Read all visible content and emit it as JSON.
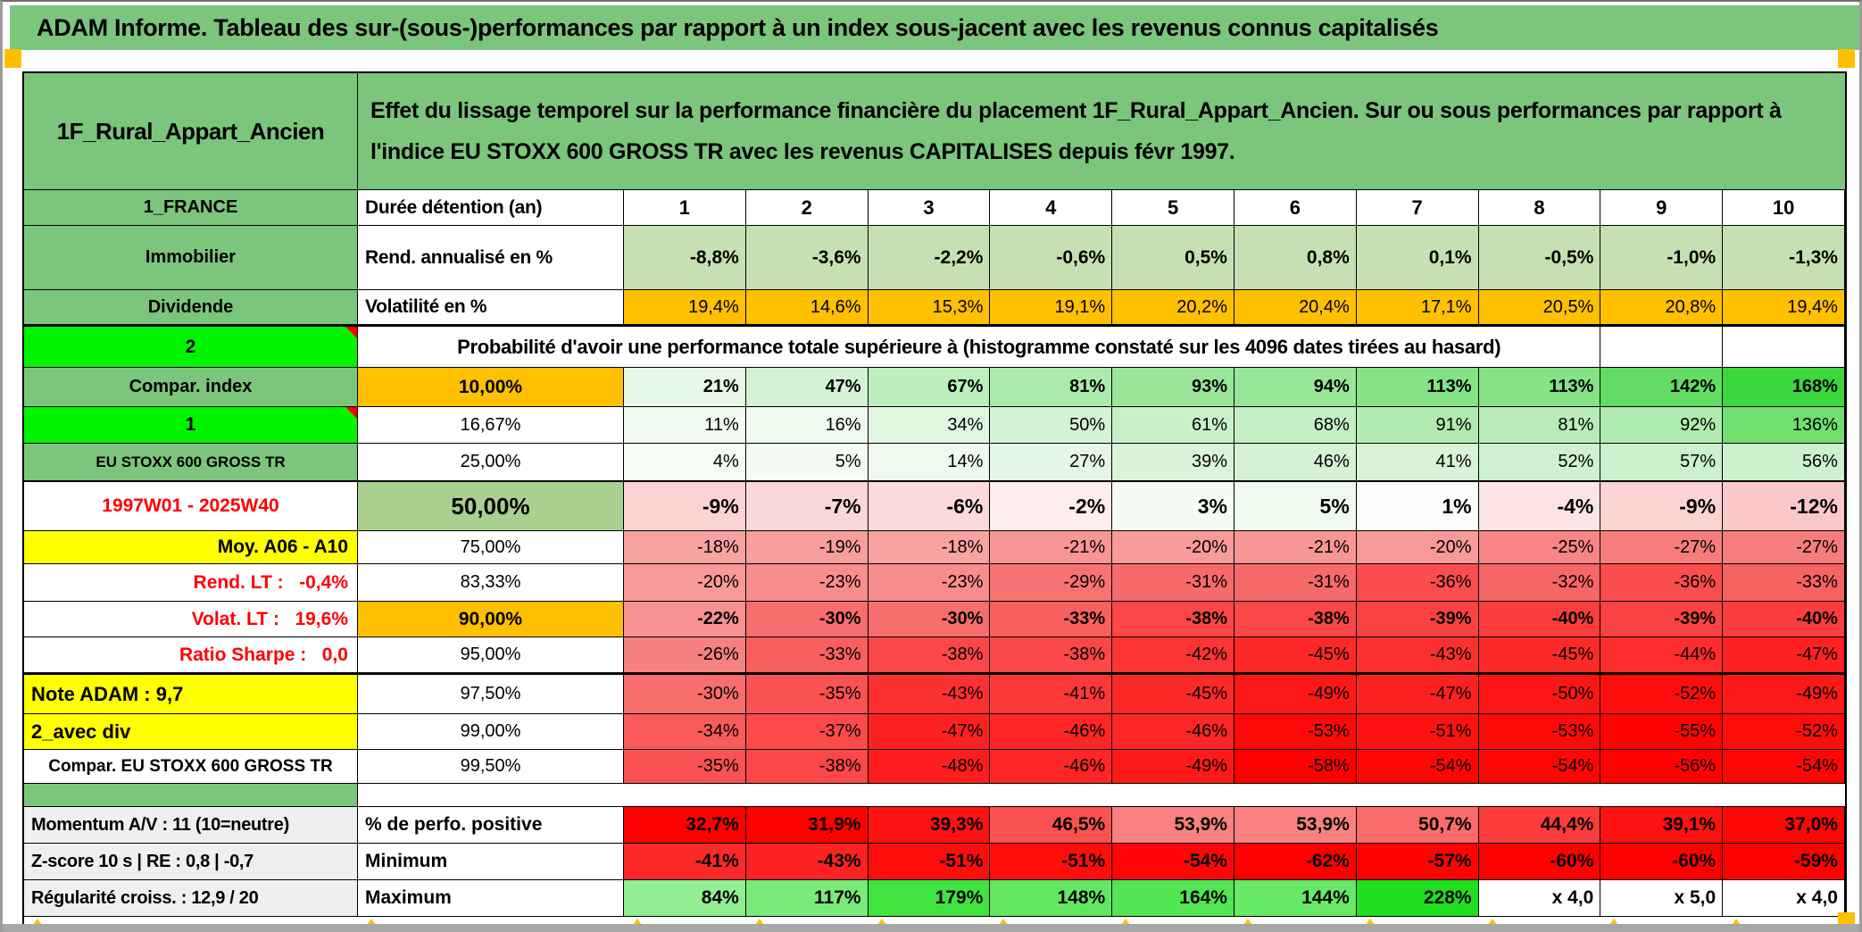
{
  "title": "ADAM Informe. Tableau des sur-(sous-)performances par rapport à un index sous-jacent avec les revenus connus capitalisés",
  "header": {
    "name": "1F_Rural_Appart_Ancien",
    "description": "Effet du lissage temporel sur la performance financière du placement 1F_Rural_Appart_Ancien. Sur ou sous performances par rapport à l'indice EU STOXX 600 GROSS TR avec les revenus CAPITALISES depuis févr 1997."
  },
  "colors": {
    "header_green": "#7cc57d",
    "bright_green": "#00f400",
    "orange": "#ffc000",
    "yellow": "#ffff00",
    "light_green_row": "#c6e0b4",
    "mid_green": "#a9d08e",
    "gray_label": "#efefef",
    "red_text": "#ff0000"
  },
  "main_rows": [
    {
      "a": "1_FRANCE",
      "aStyle": "green",
      "b": "Durée détention (an)",
      "bStyle": "hdr",
      "bold": true,
      "cells": [
        "1",
        "2",
        "3",
        "4",
        "5",
        "6",
        "7",
        "8",
        "9",
        "10"
      ],
      "bg": [
        "#ffffff",
        "#ffffff",
        "#ffffff",
        "#ffffff",
        "#ffffff",
        "#ffffff",
        "#ffffff",
        "#ffffff",
        "#ffffff",
        "#ffffff"
      ]
    },
    {
      "a": "Immobilier",
      "aStyle": "green",
      "b": "Rend. annualisé en %",
      "bStyle": "hdr",
      "bold": true,
      "cells": [
        "-8,8%",
        "-3,6%",
        "-2,2%",
        "-0,6%",
        "0,5%",
        "0,8%",
        "0,1%",
        "-0,5%",
        "-1,0%",
        "-1,3%"
      ],
      "bg": [
        "#c6e0b4",
        "#c6e0b4",
        "#c6e0b4",
        "#c6e0b4",
        "#c6e0b4",
        "#c6e0b4",
        "#c6e0b4",
        "#c6e0b4",
        "#c6e0b4",
        "#c6e0b4"
      ]
    },
    {
      "a": "Dividende",
      "aStyle": "green",
      "b": "Volatilité en %",
      "bStyle": "hdr",
      "bold": false,
      "cells": [
        "19,4%",
        "14,6%",
        "15,3%",
        "19,1%",
        "20,2%",
        "20,4%",
        "17,1%",
        "20,5%",
        "20,8%",
        "19,4%"
      ],
      "bg": [
        "#ffc000",
        "#ffc000",
        "#ffc000",
        "#ffc000",
        "#ffc000",
        "#ffc000",
        "#ffc000",
        "#ffc000",
        "#ffc000",
        "#ffc000"
      ]
    },
    {
      "a": "2",
      "aStyle": "bright",
      "note": true,
      "b": "Probabilité d'avoir une performance totale supérieure à (histogramme constaté sur les 4096 dates tirées au hasard)",
      "bStyle": "merged",
      "merged": true,
      "bold": false,
      "cells": [
        "",
        ""
      ],
      "bg": [
        "#ffffff",
        "#ffffff"
      ]
    },
    {
      "a": "Compar. index",
      "aStyle": "green",
      "b": "10,00%",
      "bStyle": "orange",
      "bold": true,
      "cells": [
        "21%",
        "47%",
        "67%",
        "81%",
        "93%",
        "94%",
        "113%",
        "113%",
        "142%",
        "168%"
      ],
      "bg": [
        "#e7f8e7",
        "#d4f3d4",
        "#bdeebd",
        "#abeaab",
        "#99e699",
        "#98e698",
        "#85e285",
        "#85e285",
        "#62dc62",
        "#3cd73c"
      ]
    },
    {
      "a": "1",
      "aStyle": "bright",
      "note": true,
      "b": "16,67%",
      "bStyle": "pct",
      "bold": false,
      "cells": [
        "11%",
        "16%",
        "34%",
        "50%",
        "61%",
        "68%",
        "91%",
        "81%",
        "92%",
        "136%"
      ],
      "bg": [
        "#f1fbf1",
        "#eefaee",
        "#e1f6e1",
        "#d4f2d4",
        "#caf0ca",
        "#c4eec4",
        "#b0eab0",
        "#b9ecb9",
        "#afeaaf",
        "#70df70"
      ]
    },
    {
      "a": "EU STOXX 600 GROSS TR",
      "aStyle": "green-sm",
      "b": "25,00%",
      "bStyle": "pct",
      "bold": false,
      "cells": [
        "4%",
        "5%",
        "14%",
        "27%",
        "39%",
        "46%",
        "41%",
        "52%",
        "57%",
        "56%"
      ],
      "bg": [
        "#f6fcf6",
        "#f5fcf5",
        "#eefaee",
        "#e4f7e4",
        "#daf4da",
        "#d5f2d5",
        "#d8f3d8",
        "#d0f1d0",
        "#ccf0cc",
        "#cdf0cd"
      ]
    },
    {
      "a": "1997W01 - 2025W40",
      "aStyle": "red-center",
      "b": "50,00%",
      "bStyle": "pct-green",
      "bold": true,
      "cells": [
        "-9%",
        "-7%",
        "-6%",
        "-2%",
        "3%",
        "5%",
        "1%",
        "-4%",
        "-9%",
        "-12%"
      ],
      "bg": [
        "#fbd3d3",
        "#fbd8d8",
        "#fcdbdb",
        "#feeded",
        "#f4fcf4",
        "#effaef",
        "#fbfefb",
        "#fde4e4",
        "#fbd3d3",
        "#fac8c8"
      ]
    },
    {
      "a": "Moy. A06 - A10",
      "aStyle": "yellow-right",
      "b": "75,00%",
      "bStyle": "pct",
      "bold": false,
      "cells": [
        "-18%",
        "-19%",
        "-18%",
        "-21%",
        "-20%",
        "-21%",
        "-20%",
        "-25%",
        "-27%",
        "-27%"
      ],
      "bg": [
        "#f9a2a2",
        "#f99e9e",
        "#f9a2a2",
        "#f89696",
        "#f99a9a",
        "#f89696",
        "#f99a9a",
        "#f78585",
        "#f77d7d",
        "#f77d7d"
      ]
    },
    {
      "a": "Rend. LT :   -0,4%",
      "aStyle": "red-right",
      "b": "83,33%",
      "bStyle": "pct",
      "bold": false,
      "cells": [
        "-20%",
        "-23%",
        "-23%",
        "-29%",
        "-31%",
        "-31%",
        "-36%",
        "-32%",
        "-36%",
        "-33%"
      ],
      "bg": [
        "#f99a9a",
        "#f88d8d",
        "#f88d8d",
        "#f77272",
        "#f66a6a",
        "#f66a6a",
        "#fa4d4d",
        "#f76666",
        "#fa4d4d",
        "#f76262"
      ]
    },
    {
      "a": "Volat. LT :   19,6%",
      "aStyle": "red-right",
      "b": "90,00%",
      "bStyle": "orange",
      "bold": true,
      "cells": [
        "-22%",
        "-30%",
        "-30%",
        "-33%",
        "-38%",
        "-38%",
        "-39%",
        "-40%",
        "-39%",
        "-40%"
      ],
      "bg": [
        "#f89191",
        "#f86d6d",
        "#f86d6d",
        "#f95f5f",
        "#fb4747",
        "#fb4747",
        "#fb4242",
        "#fc3d3d",
        "#fb4242",
        "#fc3d3d"
      ]
    },
    {
      "a": "Ratio Sharpe :   0,0",
      "aStyle": "red-right",
      "b": "95,00%",
      "bStyle": "pct",
      "bold": false,
      "cells": [
        "-26%",
        "-33%",
        "-38%",
        "-38%",
        "-42%",
        "-45%",
        "-43%",
        "-45%",
        "-44%",
        "-47%"
      ],
      "bg": [
        "#f78080",
        "#f95f5f",
        "#fb4747",
        "#fb4747",
        "#fc3434",
        "#fd2929",
        "#fc3030",
        "#fd2929",
        "#fd2d2d",
        "#fd2121"
      ]
    },
    {
      "a": "Note ADAM : 9,7",
      "aStyle": "yellow-left",
      "b": "97,50%",
      "bStyle": "pct",
      "bold": false,
      "cells": [
        "-30%",
        "-35%",
        "-43%",
        "-41%",
        "-45%",
        "-49%",
        "-47%",
        "-50%",
        "-52%",
        "-49%"
      ],
      "bg": [
        "#f86d6d",
        "#fa5252",
        "#fc3030",
        "#fc3838",
        "#fd2929",
        "#fe1919",
        "#fd2121",
        "#fe1515",
        "#fe0d0d",
        "#fe1919"
      ]
    },
    {
      "a": "2_avec div",
      "aStyle": "yellow-left",
      "b": "99,00%",
      "bStyle": "pct",
      "bold": false,
      "cells": [
        "-34%",
        "-37%",
        "-47%",
        "-46%",
        "-46%",
        "-53%",
        "-51%",
        "-53%",
        "-55%",
        "-52%"
      ],
      "bg": [
        "#f95a5a",
        "#fb4a4a",
        "#fd2121",
        "#fd2525",
        "#fd2525",
        "#fe0909",
        "#fe1111",
        "#fe0909",
        "#ff0202",
        "#fe0d0d"
      ]
    },
    {
      "a": "Compar. EU STOXX 600 GROSS TR",
      "aStyle": "white-center",
      "b": "99,50%",
      "bStyle": "pct",
      "bold": false,
      "cells": [
        "-35%",
        "-38%",
        "-48%",
        "-46%",
        "-49%",
        "-58%",
        "-54%",
        "-54%",
        "-56%",
        "-54%"
      ],
      "bg": [
        "#fa5252",
        "#fb4747",
        "#fe1d1d",
        "#fd2525",
        "#fe1919",
        "#ff0000",
        "#ff0606",
        "#ff0606",
        "#ff0101",
        "#ff0606"
      ]
    }
  ],
  "bottom_rows": [
    {
      "a": "Momentum A/V : 11 (10=neutre)",
      "b": "% de perfo. positive",
      "cells": [
        "32,7%",
        "31,9%",
        "39,3%",
        "46,5%",
        "53,9%",
        "53,9%",
        "50,7%",
        "44,4%",
        "39,1%",
        "37,0%"
      ],
      "bg": [
        "#ff0000",
        "#ff0000",
        "#fe1111",
        "#fb5151",
        "#f98181",
        "#f98181",
        "#fa6c6c",
        "#fc3b3b",
        "#fe1111",
        "#ff0606"
      ]
    },
    {
      "a": "Z-score 10 s | RE : 0,8 | -0,7",
      "b": "Minimum",
      "cells": [
        "-41%",
        "-43%",
        "-51%",
        "-51%",
        "-54%",
        "-62%",
        "-57%",
        "-60%",
        "-60%",
        "-59%"
      ],
      "bg": [
        "#fd2929",
        "#fc2222",
        "#fe0d0d",
        "#fe0d0d",
        "#ff0505",
        "#ff0000",
        "#ff0202",
        "#ff0000",
        "#ff0000",
        "#ff0101"
      ]
    },
    {
      "a": "Régularité croiss. : 12,9 / 20",
      "b": "Maximum",
      "cells": [
        "84%",
        "117%",
        "179%",
        "148%",
        "164%",
        "144%",
        "228%",
        "x 4,0",
        "x 5,0",
        "x 4,0"
      ],
      "bg": [
        "#92ee92",
        "#7aea7a",
        "#40e340",
        "#63e763",
        "#53e553",
        "#67e867",
        "#1fdf1f",
        "#ffffff",
        "#ffffff",
        "#ffffff"
      ]
    }
  ]
}
